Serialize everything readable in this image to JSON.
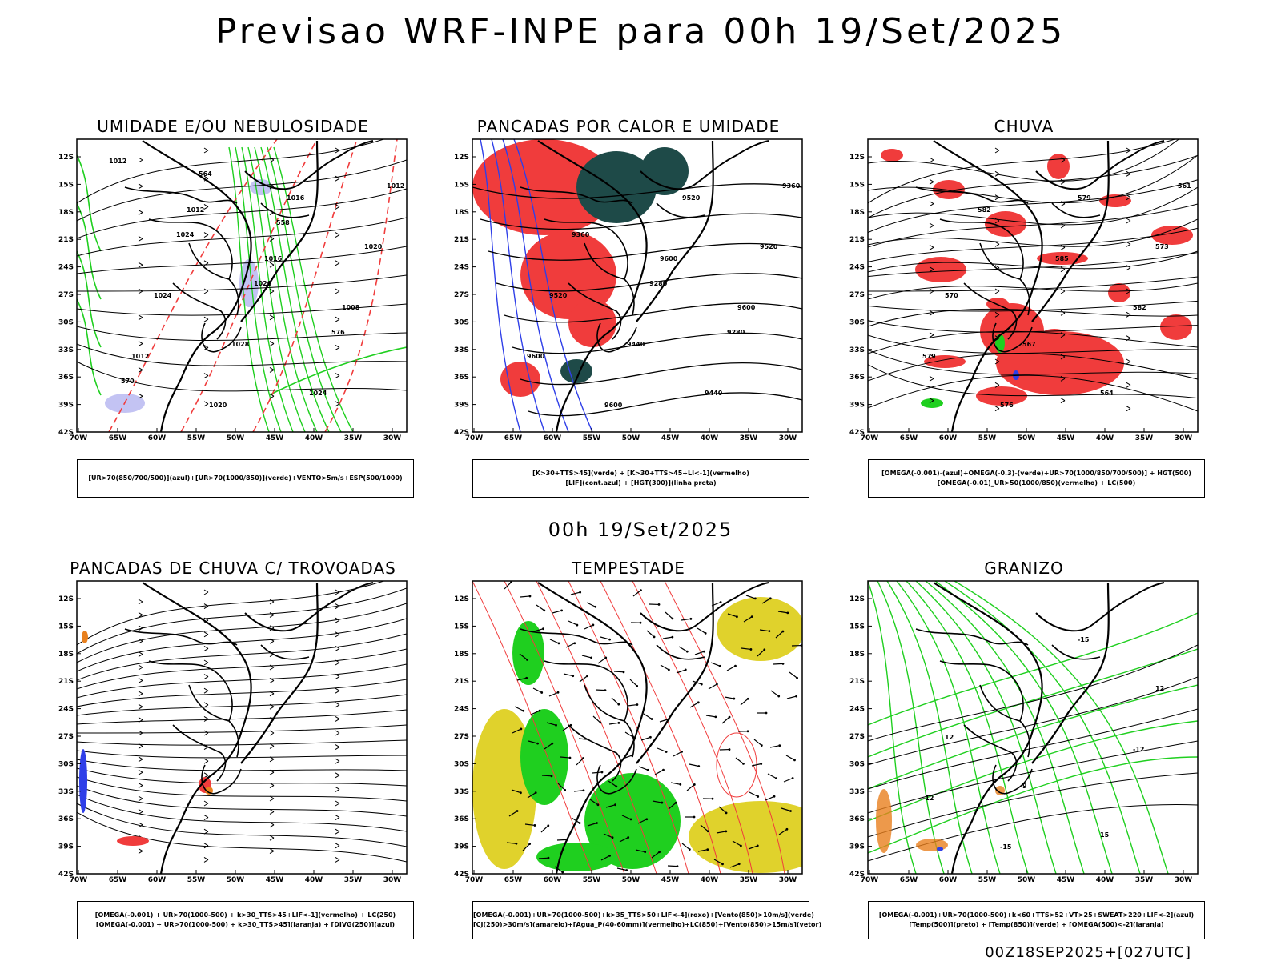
{
  "header": {
    "title": "Previsao WRF-INPE  para 00h 19/Set/2025",
    "mid_title": "00h 19/Set/2025",
    "footer": "00Z18SEP2025+[027UTC]"
  },
  "axes": {
    "lat_labels": [
      "12S",
      "15S",
      "18S",
      "21S",
      "24S",
      "27S",
      "30S",
      "33S",
      "36S",
      "39S",
      "42S"
    ],
    "lon_labels": [
      "70W",
      "65W",
      "60W",
      "55W",
      "50W",
      "45W",
      "40W",
      "35W",
      "30W"
    ]
  },
  "colors": {
    "green": "#1fcf1f",
    "red": "#f03c3c",
    "blue": "#2f3fe8",
    "lavender": "#b4b4f0",
    "darkteal": "#1e4a48",
    "yellow": "#e0d22c",
    "orange": "#e8801e"
  },
  "panels": [
    {
      "title": "UMIDADE E/OU NEBULOSIDADE",
      "legend": [
        "[UR>70(850/700/500)](azul)+[UR>70(1000/850)](verde)+VENTO>5m/s+ESP(500/1000)"
      ],
      "contour_labels": [
        "1012",
        "1012",
        "1016",
        "1008",
        "1012",
        "1020",
        "1016",
        "1020",
        "1024",
        "1028",
        "1024",
        "1012",
        "1024",
        "1020",
        "576",
        "570",
        "564",
        "558"
      ]
    },
    {
      "title": "PANCADAS POR CALOR E UMIDADE",
      "legend": [
        "[K>30+TTS>45](verde) + [K>30+TTS>45+LI<-1](vermelho)",
        "[LIF](cont.azul) + [HGT(300)](linha preta)"
      ],
      "contour_labels": [
        "9600",
        "9600",
        "9600",
        "9600",
        "9520",
        "9520",
        "9520",
        "9440",
        "9440",
        "9360",
        "9360",
        "9280",
        "9280"
      ]
    },
    {
      "title": "CHUVA",
      "legend": [
        "[OMEGA(-0.001)-(azul)+OMEGA(-0.3)-(verde)+UR>70(1000/850/700/500)] + HGT(500)",
        "[OMEGA(-0.01)_UR>50(1000/850)(vermelho) + LC(500)"
      ],
      "contour_labels": [
        "582",
        "585",
        "582",
        "579",
        "576",
        "579",
        "573",
        "570",
        "567",
        "564",
        "561"
      ]
    },
    {
      "title": "PANCADAS DE CHUVA C/ TROVOADAS",
      "legend": [
        "[OMEGA(-0.001) + UR>70(1000-500) + k>30_TTS>45+LIF<-1](vermelho) + LC(250)",
        "[OMEGA(-0.001) + UR>70(1000-500) + k>30_TTS>45](laranja) + [DIVG(250)](azul)"
      ],
      "contour_labels": []
    },
    {
      "title": "TEMPESTADE",
      "legend": [
        "[OMEGA(-0.001)+UR>70(1000-500)+k>35_TTS>50+LIF<-4](roxo)+[Vento(850)>10m/s](verde)",
        "[CJ(250)>30m/s](amarelo)+[Agua_P(40-60mm)](vermelho)+LC(850)+[Vento(850)>15m/s](vetor)"
      ],
      "contour_labels": []
    },
    {
      "title": "GRANIZO",
      "legend": [
        "[OMEGA(-0.001)+UR>70(1000-500)+k<60+TTS>52+VT>25+SWEAT>220+LIF<-2](azul)",
        "[Temp(500)](preto) + [Temp(850)](verde) + [OMEGA(500)<-2](laranja)"
      ],
      "contour_labels": [
        "-12",
        "-12",
        "-15",
        "-15",
        "12",
        "12",
        "9",
        "15"
      ]
    }
  ]
}
